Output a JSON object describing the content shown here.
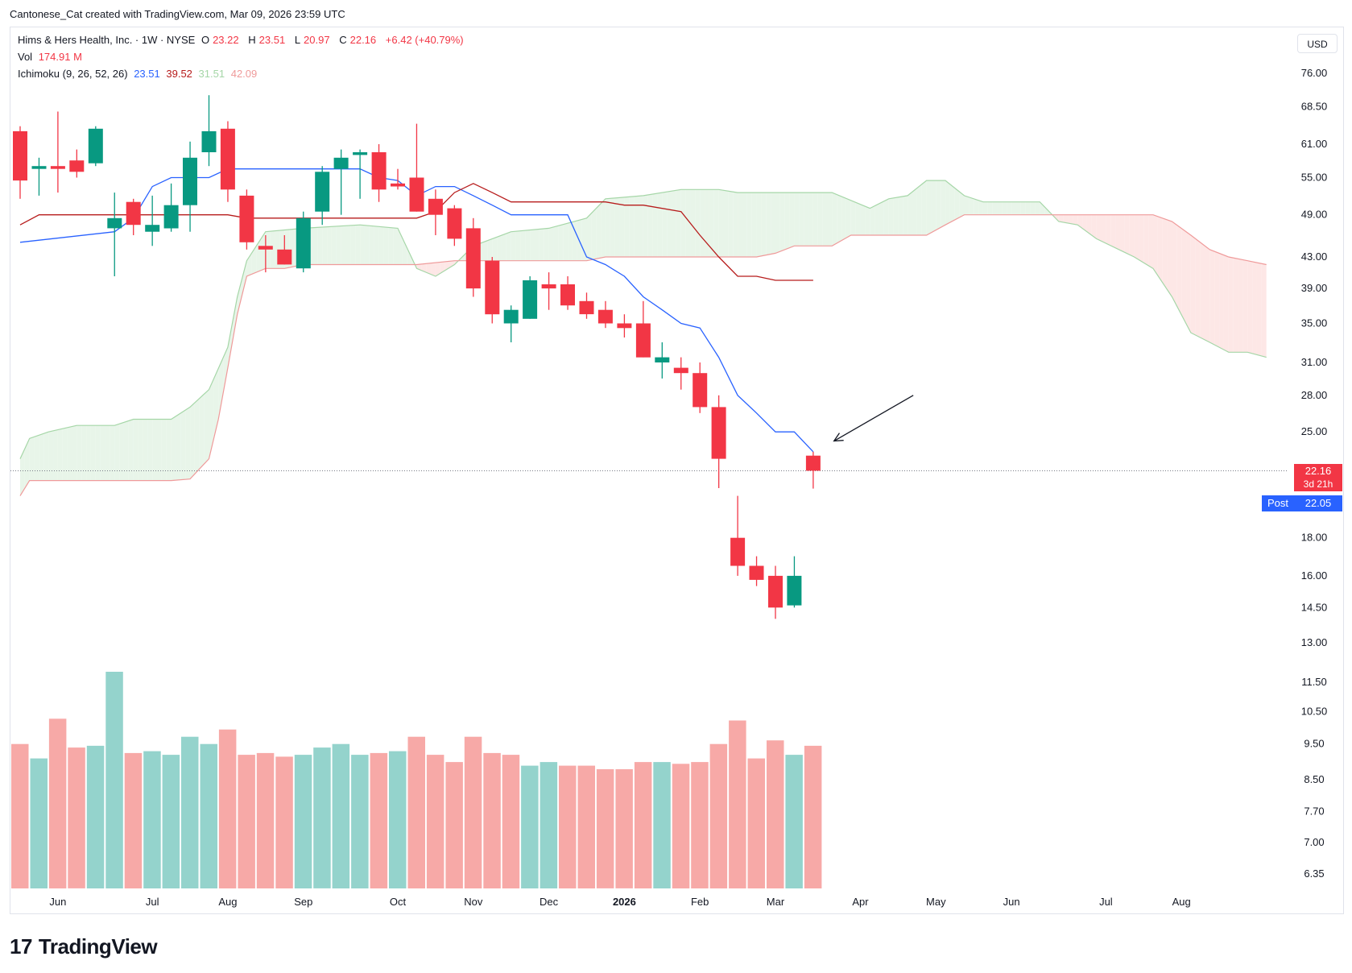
{
  "credit": "Cantonese_Cat created with TradingView.com, Mar 09, 2026 23:59 UTC",
  "legend": {
    "title": "Hims & Hers Health, Inc. · 1W · NYSE",
    "o_label": "O",
    "o_value": "23.22",
    "h_label": "H",
    "h_value": "23.51",
    "l_label": "L",
    "l_value": "20.97",
    "c_label": "C",
    "c_value": "22.16",
    "change": "+6.42 (+40.79%)",
    "vol_label": "Vol",
    "vol_value": "174.91 M",
    "ichimoku_label": "Ichimoku (9, 26, 52, 26)",
    "ichimoku_values": [
      "23.51",
      "39.52",
      "31.51",
      "42.09"
    ]
  },
  "currency": "USD",
  "last_price": {
    "value": "22.16",
    "countdown": "3d 21h"
  },
  "post": {
    "label": "Post",
    "value": "22.05"
  },
  "brand": {
    "logo": "17",
    "name": "TradingView"
  },
  "colors": {
    "up": "#089981",
    "down": "#f23645",
    "up_vol": "#94d3cc",
    "down_vol": "#f7a9a7",
    "tenkan": "#2962ff",
    "kijun": "#b71c1c",
    "span_a": "#a5d6a7",
    "span_b": "#ef9a9a",
    "cloud_bull": "#e8f5e9",
    "cloud_bear": "#fde7e6",
    "last_price_bg": "#f23645",
    "post_bg": "#2962ff"
  },
  "chart_data": {
    "type": "candlestick",
    "title": "Hims & Hers Health, Inc. · 1W · NYSE",
    "scale": "log",
    "ylim": [
      6.0,
      86.0
    ],
    "y_ticks": [
      "76.00",
      "68.50",
      "61.00",
      "55.00",
      "49.00",
      "43.00",
      "39.00",
      "35.00",
      "31.00",
      "28.00",
      "25.00",
      "18.00",
      "16.00",
      "14.50",
      "13.00",
      "11.50",
      "10.50",
      "9.50",
      "8.50",
      "7.70",
      "7.00",
      "6.35"
    ],
    "x_labels": [
      {
        "label": "Jun",
        "bar": 2
      },
      {
        "label": "Jul",
        "bar": 7
      },
      {
        "label": "Aug",
        "bar": 11
      },
      {
        "label": "Sep",
        "bar": 15
      },
      {
        "label": "Oct",
        "bar": 20
      },
      {
        "label": "Nov",
        "bar": 24
      },
      {
        "label": "Dec",
        "bar": 28
      },
      {
        "label": "2026",
        "bar": 32,
        "bold": true
      },
      {
        "label": "Feb",
        "bar": 36
      },
      {
        "label": "Mar",
        "bar": 40
      },
      {
        "label": "Apr",
        "bar": 44.5
      },
      {
        "label": "May",
        "bar": 48.5
      },
      {
        "label": "Jun",
        "bar": 52.5
      },
      {
        "label": "Jul",
        "bar": 57.5
      },
      {
        "label": "Aug",
        "bar": 61.5
      }
    ],
    "candles": [
      {
        "o": 63.5,
        "h": 64.5,
        "l": 51.5,
        "c": 54.5
      },
      {
        "o": 56.5,
        "h": 58.5,
        "l": 52.0,
        "c": 57.0
      },
      {
        "o": 57.0,
        "h": 67.5,
        "l": 52.5,
        "c": 56.5
      },
      {
        "o": 58.0,
        "h": 60.0,
        "l": 55.0,
        "c": 56.0
      },
      {
        "o": 57.5,
        "h": 64.5,
        "l": 57.0,
        "c": 64.0
      },
      {
        "o": 47.0,
        "h": 52.5,
        "l": 40.5,
        "c": 48.5
      },
      {
        "o": 51.0,
        "h": 51.5,
        "l": 46.0,
        "c": 47.5
      },
      {
        "o": 46.5,
        "h": 52.0,
        "l": 44.5,
        "c": 47.5
      },
      {
        "o": 47.0,
        "h": 54.0,
        "l": 46.5,
        "c": 50.5
      },
      {
        "o": 50.5,
        "h": 61.5,
        "l": 46.5,
        "c": 58.5
      },
      {
        "o": 59.5,
        "h": 71.0,
        "l": 57.0,
        "c": 63.5
      },
      {
        "o": 64.0,
        "h": 65.5,
        "l": 51.0,
        "c": 53.0
      },
      {
        "o": 52.0,
        "h": 53.0,
        "l": 44.0,
        "c": 45.0
      },
      {
        "o": 44.5,
        "h": 46.0,
        "l": 41.0,
        "c": 44.0
      },
      {
        "o": 44.0,
        "h": 46.0,
        "l": 42.0,
        "c": 42.0
      },
      {
        "o": 41.5,
        "h": 49.5,
        "l": 41.0,
        "c": 48.5
      },
      {
        "o": 49.5,
        "h": 57.0,
        "l": 47.5,
        "c": 56.0
      },
      {
        "o": 56.5,
        "h": 60.0,
        "l": 49.0,
        "c": 58.5
      },
      {
        "o": 59.0,
        "h": 60.0,
        "l": 51.5,
        "c": 59.5
      },
      {
        "o": 59.5,
        "h": 61.0,
        "l": 51.0,
        "c": 53.0
      },
      {
        "o": 54.0,
        "h": 56.5,
        "l": 53.0,
        "c": 53.5
      },
      {
        "o": 55.0,
        "h": 65.0,
        "l": 49.5,
        "c": 49.5
      },
      {
        "o": 51.5,
        "h": 53.0,
        "l": 46.0,
        "c": 49.0
      },
      {
        "o": 50.0,
        "h": 50.5,
        "l": 44.5,
        "c": 45.5
      },
      {
        "o": 47.0,
        "h": 48.5,
        "l": 38.0,
        "c": 39.0
      },
      {
        "o": 42.5,
        "h": 43.0,
        "l": 35.0,
        "c": 36.0
      },
      {
        "o": 35.0,
        "h": 37.0,
        "l": 33.0,
        "c": 36.5
      },
      {
        "o": 35.5,
        "h": 40.5,
        "l": 35.5,
        "c": 40.0
      },
      {
        "o": 39.5,
        "h": 41.0,
        "l": 36.5,
        "c": 39.0
      },
      {
        "o": 39.5,
        "h": 40.5,
        "l": 36.5,
        "c": 37.0
      },
      {
        "o": 37.5,
        "h": 38.5,
        "l": 35.5,
        "c": 36.0
      },
      {
        "o": 36.5,
        "h": 37.5,
        "l": 34.5,
        "c": 35.0
      },
      {
        "o": 35.0,
        "h": 36.0,
        "l": 33.5,
        "c": 34.5
      },
      {
        "o": 35.0,
        "h": 37.5,
        "l": 31.5,
        "c": 31.5
      },
      {
        "o": 31.0,
        "h": 33.0,
        "l": 29.5,
        "c": 31.5
      },
      {
        "o": 30.5,
        "h": 31.5,
        "l": 28.5,
        "c": 30.0
      },
      {
        "o": 30.0,
        "h": 31.0,
        "l": 26.5,
        "c": 27.0
      },
      {
        "o": 27.0,
        "h": 28.0,
        "l": 21.0,
        "c": 23.0
      },
      {
        "o": 18.0,
        "h": 20.5,
        "l": 16.0,
        "c": 16.5
      },
      {
        "o": 16.5,
        "h": 17.0,
        "l": 15.5,
        "c": 15.8
      },
      {
        "o": 16.0,
        "h": 16.5,
        "l": 14.0,
        "c": 14.5
      },
      {
        "o": 14.6,
        "h": 17.0,
        "l": 14.5,
        "c": 16.0
      },
      {
        "o": 23.22,
        "h": 23.51,
        "l": 20.97,
        "c": 22.16
      }
    ],
    "volume": [
      {
        "v": 8.0,
        "up": false
      },
      {
        "v": 7.2,
        "up": true
      },
      {
        "v": 9.4,
        "up": false
      },
      {
        "v": 7.8,
        "up": false
      },
      {
        "v": 7.9,
        "up": true
      },
      {
        "v": 12.0,
        "up": true
      },
      {
        "v": 7.5,
        "up": false
      },
      {
        "v": 7.6,
        "up": true
      },
      {
        "v": 7.4,
        "up": true
      },
      {
        "v": 8.4,
        "up": true
      },
      {
        "v": 8.0,
        "up": true
      },
      {
        "v": 8.8,
        "up": false
      },
      {
        "v": 7.4,
        "up": false
      },
      {
        "v": 7.5,
        "up": false
      },
      {
        "v": 7.3,
        "up": false
      },
      {
        "v": 7.4,
        "up": true
      },
      {
        "v": 7.8,
        "up": true
      },
      {
        "v": 8.0,
        "up": true
      },
      {
        "v": 7.4,
        "up": true
      },
      {
        "v": 7.5,
        "up": false
      },
      {
        "v": 7.6,
        "up": true
      },
      {
        "v": 8.4,
        "up": false
      },
      {
        "v": 7.4,
        "up": false
      },
      {
        "v": 7.0,
        "up": false
      },
      {
        "v": 8.4,
        "up": false
      },
      {
        "v": 7.5,
        "up": false
      },
      {
        "v": 7.4,
        "up": false
      },
      {
        "v": 6.8,
        "up": true
      },
      {
        "v": 7.0,
        "up": true
      },
      {
        "v": 6.8,
        "up": false
      },
      {
        "v": 6.8,
        "up": false
      },
      {
        "v": 6.6,
        "up": false
      },
      {
        "v": 6.6,
        "up": false
      },
      {
        "v": 7.0,
        "up": false
      },
      {
        "v": 7.0,
        "up": true
      },
      {
        "v": 6.9,
        "up": false
      },
      {
        "v": 7.0,
        "up": false
      },
      {
        "v": 8.0,
        "up": false
      },
      {
        "v": 9.3,
        "up": false
      },
      {
        "v": 7.2,
        "up": false
      },
      {
        "v": 8.2,
        "up": false
      },
      {
        "v": 7.4,
        "up": true
      },
      {
        "v": 7.9,
        "up": false
      }
    ],
    "tenkan": [
      [
        0,
        45.0
      ],
      [
        5,
        46.5
      ],
      [
        6,
        48.5
      ],
      [
        7,
        53.5
      ],
      [
        8,
        55.0
      ],
      [
        10,
        55.0
      ],
      [
        11,
        56.5
      ],
      [
        18,
        56.5
      ],
      [
        19,
        55.0
      ],
      [
        20,
        54.5
      ],
      [
        21,
        52.0
      ],
      [
        22,
        53.5
      ],
      [
        23,
        53.5
      ],
      [
        24,
        52.0
      ],
      [
        25,
        50.5
      ],
      [
        26,
        49.0
      ],
      [
        29,
        49.0
      ],
      [
        30,
        43.0
      ],
      [
        31,
        42.0
      ],
      [
        32,
        40.5
      ],
      [
        33,
        38.0
      ],
      [
        34,
        36.5
      ],
      [
        35,
        35.0
      ],
      [
        36,
        34.5
      ],
      [
        37,
        31.5
      ],
      [
        38,
        28.0
      ],
      [
        39,
        26.5
      ],
      [
        40,
        25.0
      ],
      [
        41,
        25.0
      ],
      [
        42,
        23.5
      ]
    ],
    "kijun": [
      [
        0,
        47.5
      ],
      [
        1,
        49.0
      ],
      [
        11,
        49.0
      ],
      [
        12,
        48.5
      ],
      [
        21,
        48.5
      ],
      [
        22,
        49.5
      ],
      [
        23,
        52.5
      ],
      [
        24,
        54.0
      ],
      [
        25,
        52.5
      ],
      [
        26,
        51.0
      ],
      [
        31,
        51.0
      ],
      [
        32,
        50.5
      ],
      [
        33,
        50.5
      ],
      [
        35,
        49.5
      ],
      [
        36,
        46.0
      ],
      [
        37,
        43.0
      ],
      [
        38,
        40.5
      ],
      [
        39,
        40.5
      ],
      [
        40,
        40.0
      ],
      [
        42,
        40.0
      ]
    ],
    "span_a": [
      [
        0,
        23.0
      ],
      [
        0.5,
        24.5
      ],
      [
        1.5,
        25.0
      ],
      [
        3,
        25.5
      ],
      [
        5,
        25.5
      ],
      [
        6,
        26.0
      ],
      [
        8,
        26.0
      ],
      [
        9,
        27.0
      ],
      [
        10,
        28.5
      ],
      [
        11,
        32.5
      ],
      [
        11.5,
        38.0
      ],
      [
        12,
        42.5
      ],
      [
        13,
        46.5
      ],
      [
        15,
        47.0
      ],
      [
        18,
        47.5
      ],
      [
        20,
        47.0
      ],
      [
        21,
        41.5
      ],
      [
        22,
        40.5
      ],
      [
        23,
        42.0
      ],
      [
        24,
        44.5
      ],
      [
        26,
        46.5
      ],
      [
        28,
        47.0
      ],
      [
        30,
        48.5
      ],
      [
        31,
        51.5
      ],
      [
        33,
        52.0
      ],
      [
        35,
        53.0
      ],
      [
        37,
        53.0
      ],
      [
        38,
        52.5
      ],
      [
        43,
        52.5
      ],
      [
        45,
        50.0
      ],
      [
        46,
        51.5
      ],
      [
        47,
        52.0
      ],
      [
        48,
        54.5
      ],
      [
        49,
        54.5
      ],
      [
        50,
        52.0
      ],
      [
        51,
        51.0
      ],
      [
        54,
        51.0
      ],
      [
        55,
        48.0
      ],
      [
        56,
        47.5
      ],
      [
        57,
        45.5
      ],
      [
        59,
        43.0
      ],
      [
        60,
        41.5
      ],
      [
        61,
        38.0
      ],
      [
        62,
        34.0
      ],
      [
        63,
        33.0
      ],
      [
        64,
        32.0
      ],
      [
        65,
        32.0
      ],
      [
        66,
        31.5
      ]
    ],
    "span_b": [
      [
        0,
        20.5
      ],
      [
        0.5,
        21.5
      ],
      [
        8,
        21.5
      ],
      [
        9,
        21.6
      ],
      [
        10,
        23.0
      ],
      [
        10.5,
        26.0
      ],
      [
        11,
        30.5
      ],
      [
        11.5,
        36.0
      ],
      [
        12,
        40.5
      ],
      [
        13,
        41.5
      ],
      [
        14,
        41.5
      ],
      [
        15,
        42.0
      ],
      [
        20,
        42.0
      ],
      [
        21,
        42.0
      ],
      [
        23,
        42.5
      ],
      [
        30,
        42.5
      ],
      [
        31,
        43.0
      ],
      [
        39,
        43.0
      ],
      [
        40,
        43.5
      ],
      [
        41,
        44.5
      ],
      [
        42,
        44.5
      ],
      [
        43,
        44.5
      ],
      [
        44,
        46.0
      ],
      [
        48,
        46.0
      ],
      [
        49,
        47.5
      ],
      [
        50,
        49.0
      ],
      [
        60,
        49.0
      ],
      [
        61,
        48.0
      ],
      [
        62,
        46.0
      ],
      [
        63,
        44.0
      ],
      [
        64,
        43.0
      ],
      [
        65,
        42.5
      ],
      [
        66,
        42.0
      ]
    ],
    "arrow": {
      "from": {
        "bar": 47.3,
        "price": 28.0
      },
      "to": {
        "bar": 43.1,
        "price": 24.3
      }
    },
    "last_close": 22.16,
    "post_price": 22.05
  }
}
